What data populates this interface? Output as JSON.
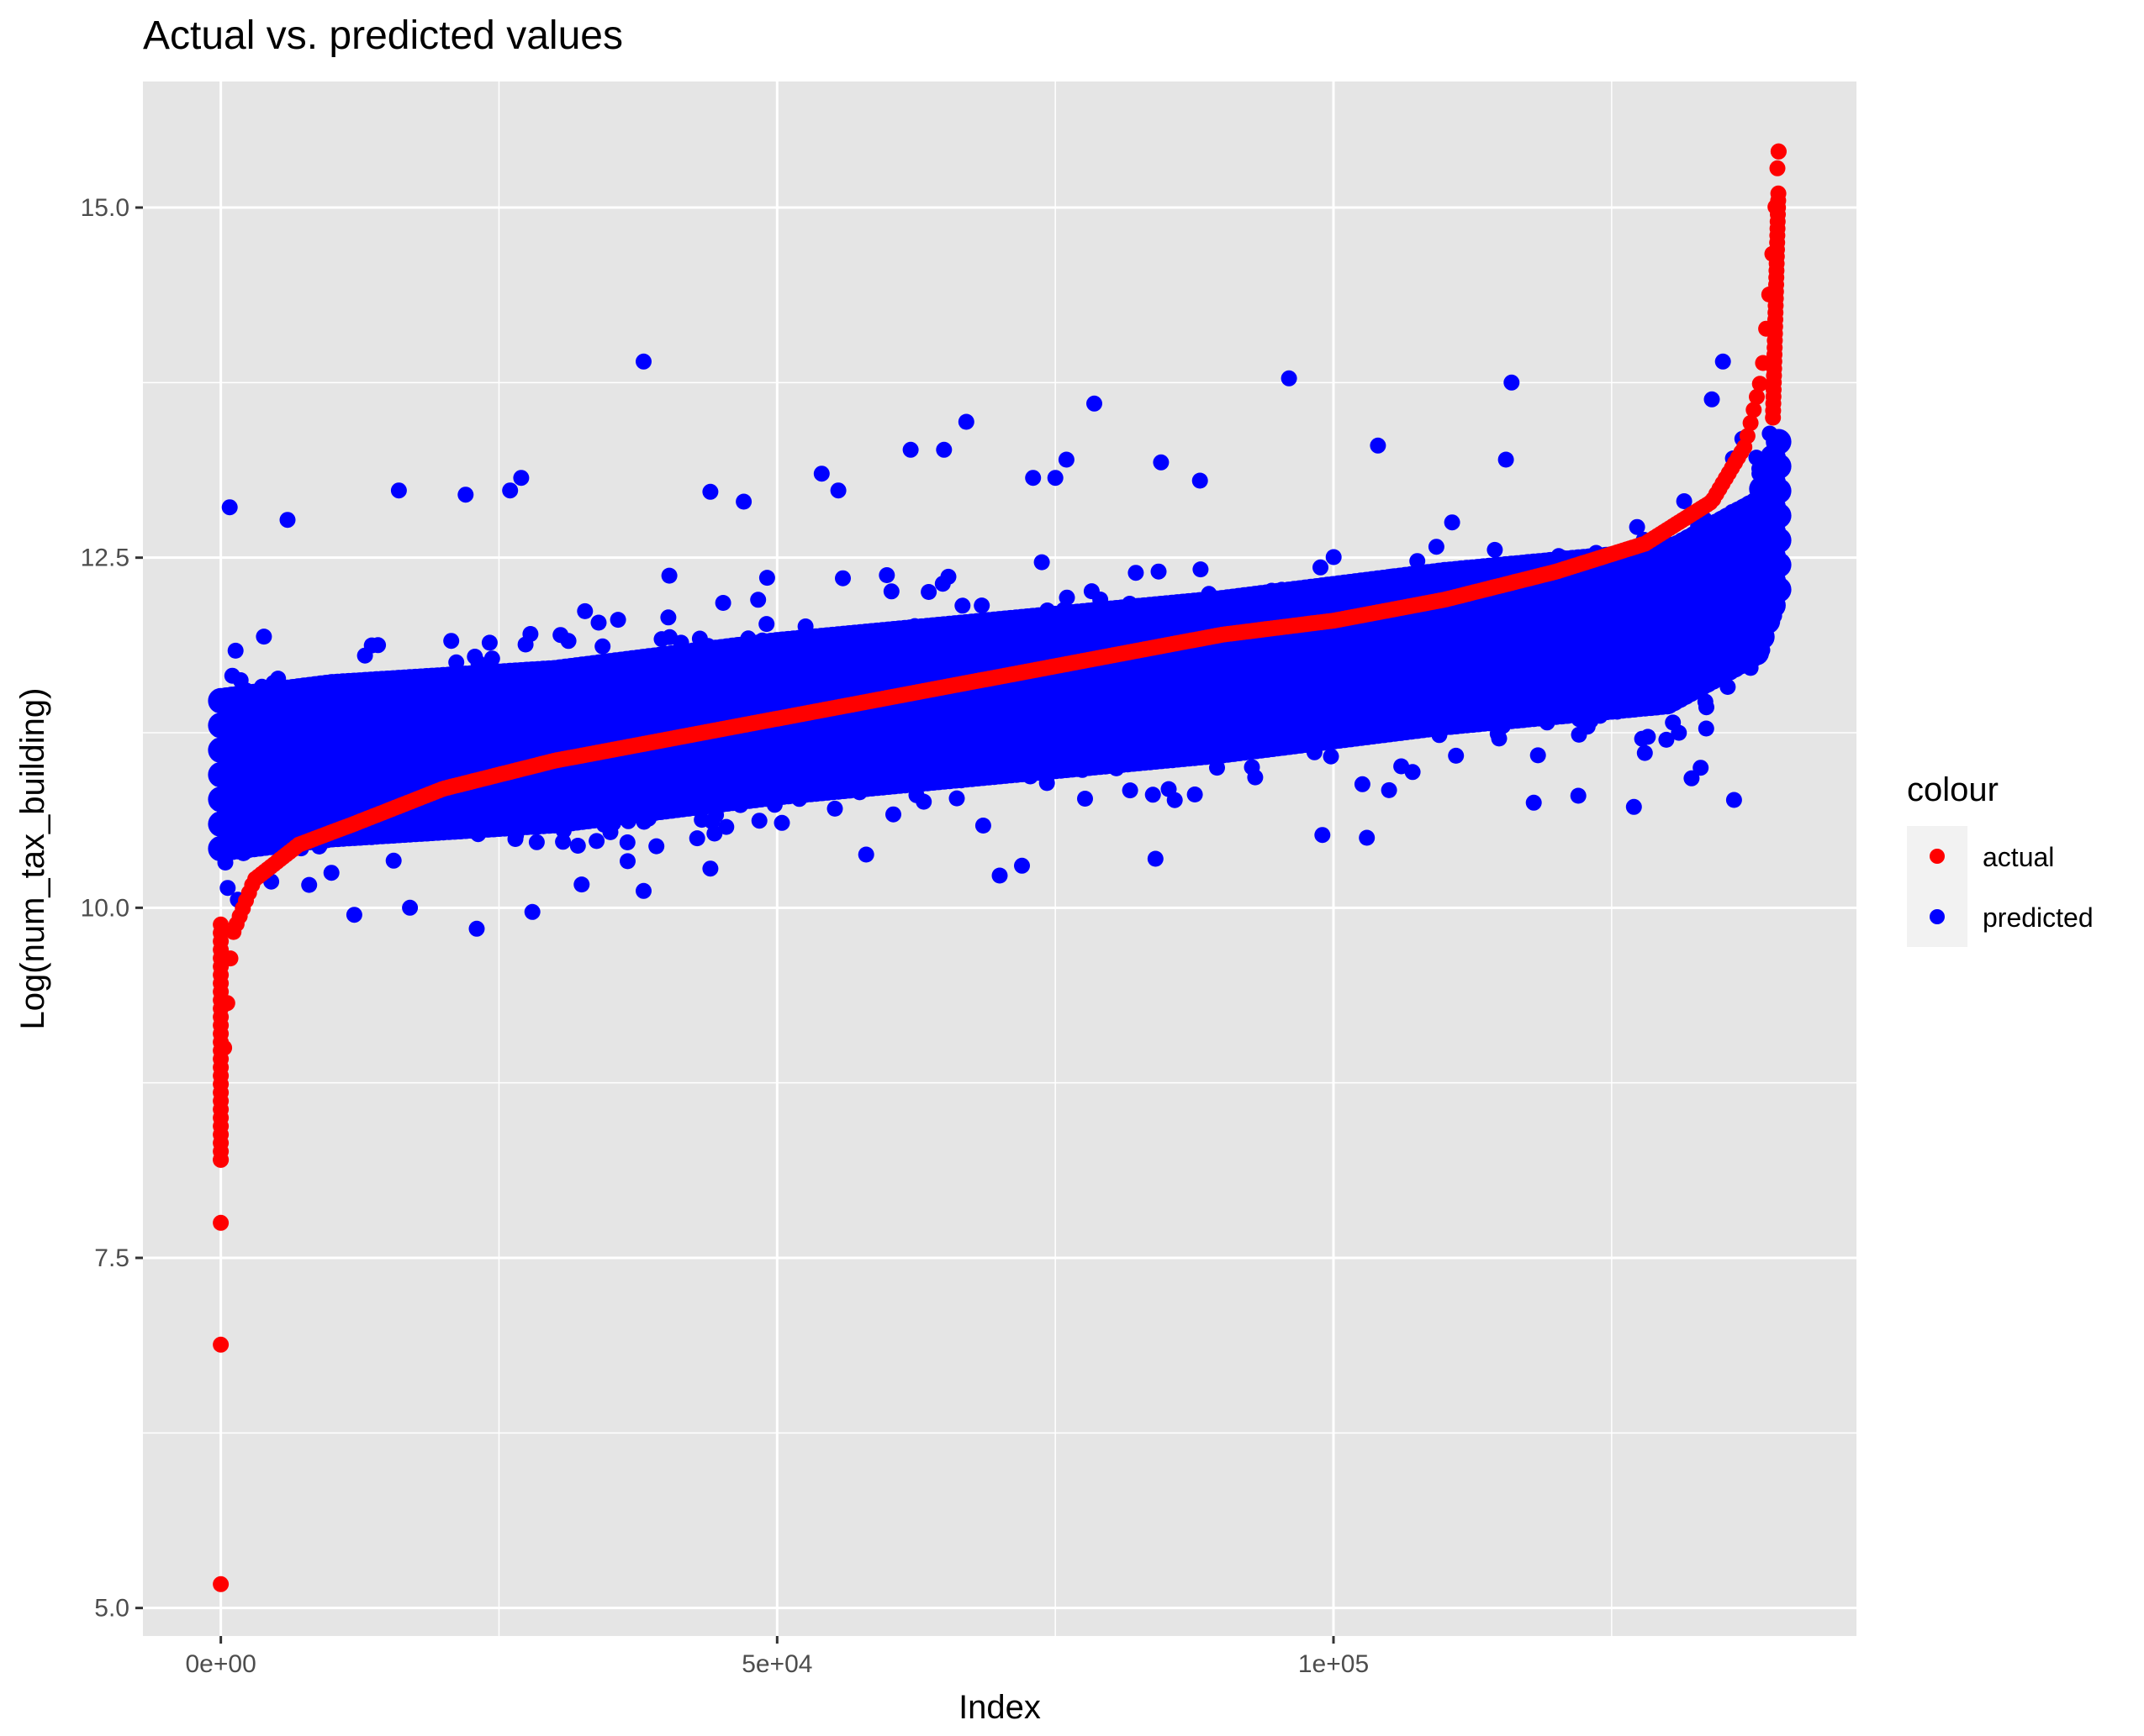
{
  "chart_data": {
    "type": "scatter",
    "title": "Actual vs. predicted values",
    "xlabel": "Index",
    "ylabel": "Log(num_tax_building)",
    "xlim": [
      -7000,
      147000
    ],
    "ylim": [
      4.8,
      15.9
    ],
    "x_ticks": [
      {
        "value": 0,
        "label": "0e+00"
      },
      {
        "value": 50000,
        "label": "5e+04"
      },
      {
        "value": 100000,
        "label": "1e+05"
      }
    ],
    "x_minor_ticks": [
      25000,
      75000,
      125000
    ],
    "y_ticks": [
      {
        "value": 5.0,
        "label": "5.0"
      },
      {
        "value": 7.5,
        "label": "7.5"
      },
      {
        "value": 10.0,
        "label": "10.0"
      },
      {
        "value": 12.5,
        "label": "12.5"
      },
      {
        "value": 15.0,
        "label": "15.0"
      }
    ],
    "y_minor_ticks": [
      6.25,
      8.75,
      11.25,
      13.75
    ],
    "grid": true,
    "panel_background": "#e5e5e5",
    "legend": {
      "title": "colour",
      "placement": "right",
      "entries": [
        {
          "label": "actual",
          "color": "#ff0000"
        },
        {
          "label": "predicted",
          "color": "#0000ff"
        }
      ]
    },
    "series": [
      {
        "name": "actual",
        "color": "#ff0000",
        "description_points": [
          [
            0,
            5.17
          ],
          [
            0,
            6.88
          ],
          [
            0,
            7.75
          ],
          [
            0,
            8.2
          ],
          [
            300,
            9.0
          ],
          [
            1000,
            9.8
          ],
          [
            3000,
            10.2
          ],
          [
            7000,
            10.45
          ],
          [
            12000,
            10.6
          ],
          [
            20000,
            10.85
          ],
          [
            30000,
            11.05
          ],
          [
            40000,
            11.2
          ],
          [
            50000,
            11.35
          ],
          [
            60000,
            11.5
          ],
          [
            70000,
            11.65
          ],
          [
            80000,
            11.8
          ],
          [
            90000,
            11.95
          ],
          [
            100000,
            12.05
          ],
          [
            110000,
            12.2
          ],
          [
            120000,
            12.4
          ],
          [
            128000,
            12.6
          ],
          [
            134000,
            12.9
          ],
          [
            137000,
            13.3
          ],
          [
            138500,
            13.8
          ],
          [
            139300,
            14.5
          ],
          [
            139800,
            15.1
          ],
          [
            140000,
            15.4
          ]
        ]
      },
      {
        "name": "predicted",
        "color": "#0000ff",
        "band_center": [
          [
            0,
            10.95
          ],
          [
            10000,
            11.05
          ],
          [
            30000,
            11.15
          ],
          [
            50000,
            11.35
          ],
          [
            70000,
            11.5
          ],
          [
            90000,
            11.65
          ],
          [
            110000,
            11.85
          ],
          [
            130000,
            12.0
          ],
          [
            138000,
            12.35
          ],
          [
            140000,
            12.8
          ]
        ],
        "band_spread": 0.55,
        "outliers": [
          [
            38000,
            13.9
          ],
          [
            96000,
            13.78
          ],
          [
            116000,
            13.75
          ],
          [
            67000,
            13.47
          ],
          [
            78500,
            13.6
          ],
          [
            62000,
            13.27
          ],
          [
            65000,
            13.27
          ],
          [
            27000,
            13.07
          ],
          [
            54000,
            13.1
          ],
          [
            73000,
            13.07
          ],
          [
            75000,
            13.07
          ],
          [
            76000,
            13.2
          ],
          [
            84500,
            13.18
          ],
          [
            16000,
            12.98
          ],
          [
            22000,
            12.95
          ],
          [
            26000,
            12.98
          ],
          [
            800,
            12.86
          ],
          [
            6000,
            12.77
          ],
          [
            44000,
            12.97
          ],
          [
            47000,
            12.9
          ],
          [
            55500,
            12.98
          ],
          [
            88000,
            13.05
          ],
          [
            104000,
            13.3
          ],
          [
            115500,
            13.2
          ],
          [
            135000,
            13.9
          ],
          [
            134000,
            13.63
          ],
          [
            38000,
            10.12
          ],
          [
            28000,
            9.97
          ],
          [
            23000,
            9.85
          ],
          [
            12000,
            9.95
          ],
          [
            17000,
            10.0
          ],
          [
            44000,
            10.28
          ],
          [
            58000,
            10.38
          ],
          [
            70000,
            10.23
          ],
          [
            72000,
            10.3
          ],
          [
            84000,
            10.35
          ],
          [
            99000,
            10.52
          ],
          [
            103000,
            10.5
          ],
          [
            118000,
            10.75
          ],
          [
            122000,
            10.8
          ],
          [
            127000,
            10.72
          ],
          [
            133000,
            11.0
          ],
          [
            136000,
            10.77
          ],
          [
            133500,
            11.28
          ]
        ]
      }
    ]
  }
}
